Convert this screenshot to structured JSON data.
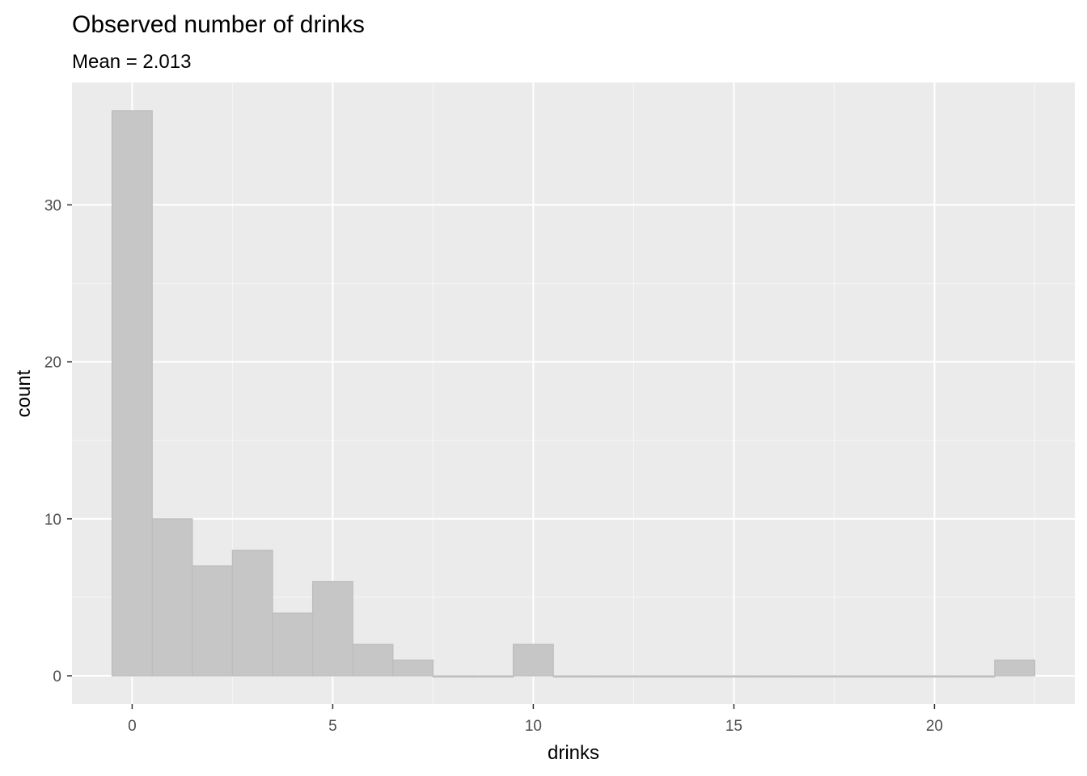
{
  "chart_data": {
    "type": "bar",
    "title": "Observed number of drinks",
    "subtitle": "Mean = 2.013",
    "xlabel": "drinks",
    "ylabel": "count",
    "bin_width": 1,
    "x": [
      0,
      1,
      2,
      3,
      4,
      5,
      6,
      7,
      8,
      9,
      10,
      11,
      12,
      13,
      14,
      15,
      16,
      17,
      18,
      19,
      20,
      21,
      22
    ],
    "values": [
      36,
      10,
      7,
      8,
      4,
      6,
      2,
      1,
      0,
      0,
      2,
      0,
      0,
      0,
      0,
      0,
      0,
      0,
      0,
      0,
      0,
      0,
      1
    ],
    "xlim": [
      -1.5,
      23.5
    ],
    "ylim": [
      -1.8,
      37.8
    ],
    "x_ticks": [
      0,
      5,
      10,
      15,
      20
    ],
    "x_tick_labels": [
      "0",
      "5",
      "10",
      "15",
      "20"
    ],
    "y_ticks": [
      0,
      10,
      20,
      30
    ],
    "y_tick_labels": [
      "0",
      "10",
      "20",
      "30"
    ],
    "grid": true,
    "colors": {
      "panel": "#ebebeb",
      "grid_major": "#ffffff",
      "grid_minor": "#f5f5f5",
      "bar_fill": "#c6c6c6",
      "bar_stroke": "#bdbdbd",
      "tick_text": "#4d4d4d"
    }
  }
}
